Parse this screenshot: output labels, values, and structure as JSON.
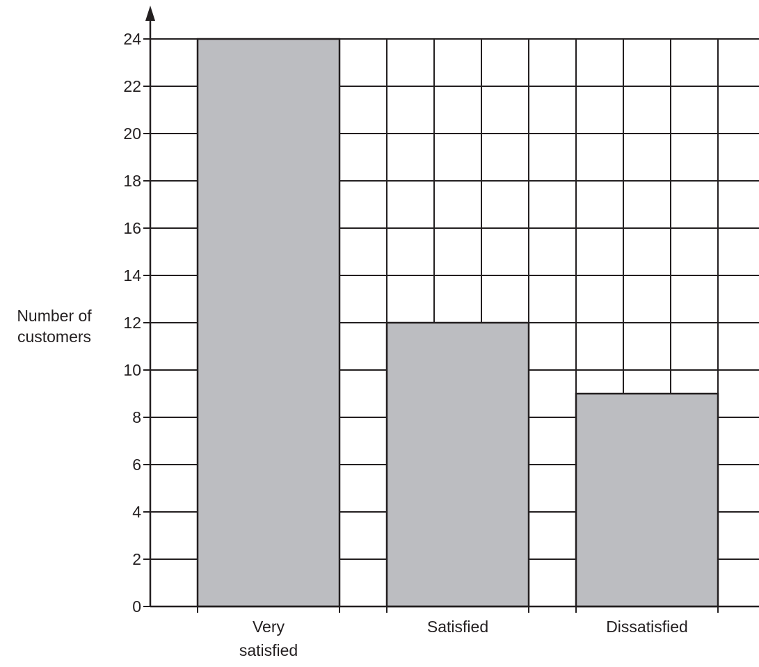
{
  "chart_data": {
    "type": "bar",
    "title": "",
    "xlabel": "",
    "ylabel_lines": [
      "Number of",
      "customers"
    ],
    "categories": [
      [
        "Very",
        "satisfied"
      ],
      [
        "Satisfied"
      ],
      [
        "Dissatisfied"
      ]
    ],
    "values": [
      24,
      12,
      9
    ],
    "ylim": [
      0,
      24
    ],
    "y_ticks": [
      "0",
      "2",
      "4",
      "6",
      "8",
      "10",
      "12",
      "14",
      "16",
      "18",
      "20",
      "22",
      "24"
    ],
    "grid": true,
    "colors": {
      "bar_fill": "#bcbdc1",
      "stroke": "#231f20",
      "text": "#231f20"
    }
  }
}
